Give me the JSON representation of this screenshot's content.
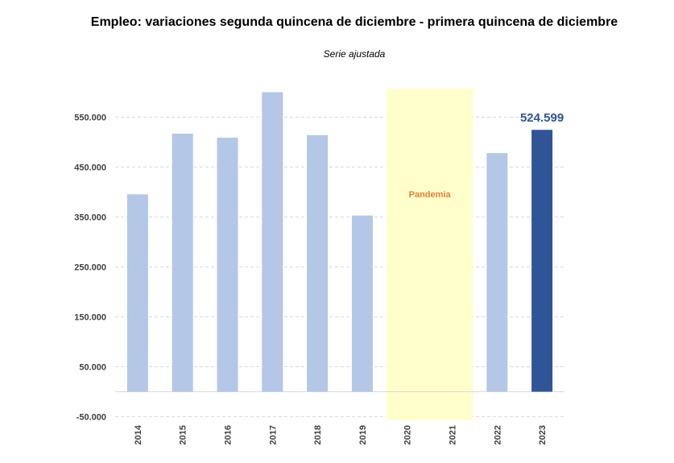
{
  "chart_data": {
    "type": "bar",
    "title": "Empleo: variaciones segunda quincena de diciembre - primera quincena de diciembre",
    "subtitle": "Serie ajustada",
    "categories": [
      "2014",
      "2015",
      "2016",
      "2017",
      "2018",
      "2019",
      "2020",
      "2021",
      "2022",
      "2023"
    ],
    "values": [
      395500,
      517000,
      509000,
      600000,
      514000,
      353000,
      null,
      null,
      478000,
      524599
    ],
    "highlight": {
      "category": "2023",
      "label": "524.599",
      "color": "#2F5597"
    },
    "bar_color": "#B4C7E7",
    "annotation": {
      "label": "Pandemia",
      "categories": [
        "2020",
        "2021"
      ],
      "fill": "#FFFFCC",
      "text_color": "#ED7D31"
    },
    "yticks": [
      "-50.000",
      "50.000",
      "150.000",
      "250.000",
      "350.000",
      "450.000",
      "550.000"
    ],
    "ytick_values": [
      -50000,
      50000,
      150000,
      250000,
      350000,
      450000,
      550000
    ],
    "ylim": [
      -50000,
      600000
    ],
    "grid": true,
    "xlabel": "",
    "ylabel": ""
  }
}
